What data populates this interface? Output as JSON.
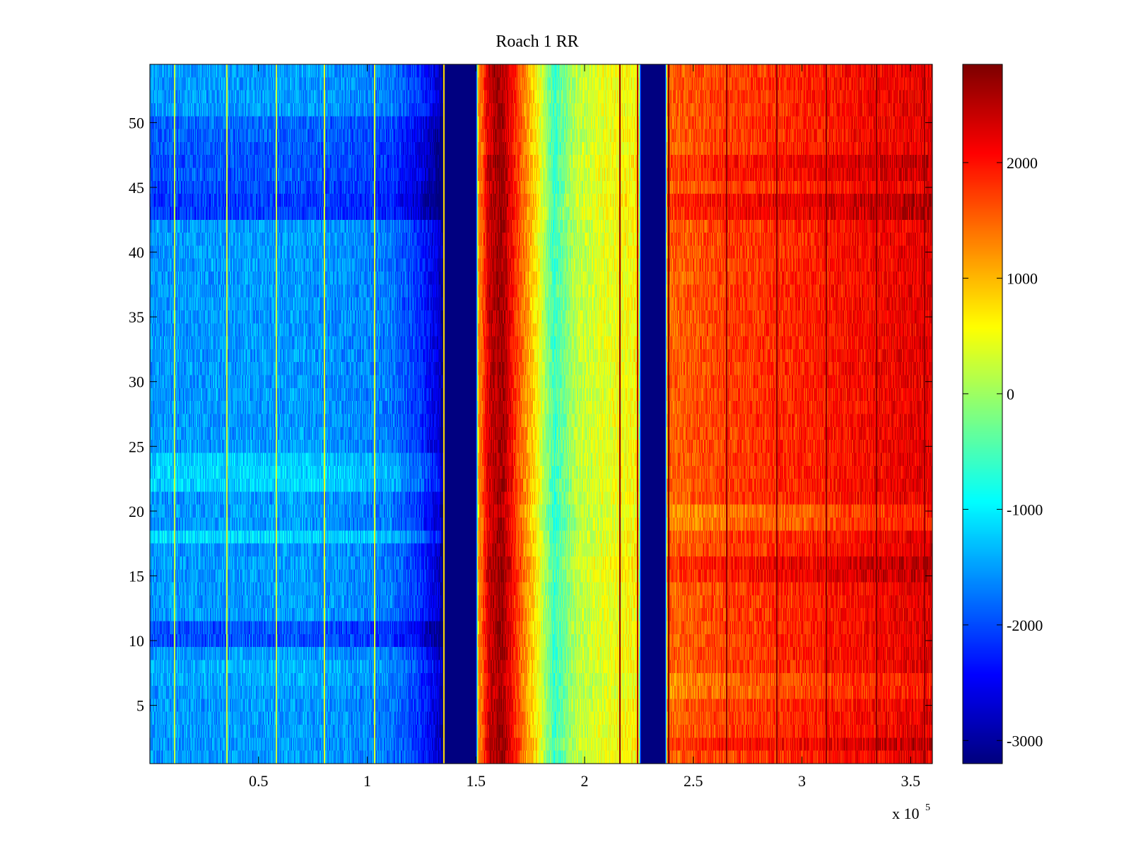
{
  "chart_data": {
    "type": "heatmap",
    "title": "Roach 1 RR",
    "xlabel": "",
    "ylabel": "",
    "x_range": [
      0,
      360000
    ],
    "y_range": [
      0.5,
      54.5
    ],
    "x_ticks": [
      50000,
      100000,
      150000,
      200000,
      250000,
      300000,
      350000
    ],
    "x_tick_labels": [
      "0.5",
      "1",
      "1.5",
      "2",
      "2.5",
      "3",
      "3.5"
    ],
    "x_multiplier_label": "x 10",
    "x_multiplier_exponent": "5",
    "y_ticks": [
      5,
      10,
      15,
      20,
      25,
      30,
      35,
      40,
      45,
      50
    ],
    "y_tick_labels": [
      "5",
      "10",
      "15",
      "20",
      "25",
      "30",
      "35",
      "40",
      "45",
      "50"
    ],
    "rows": 54,
    "colormap": "jet",
    "colorbar": {
      "range": [
        -3200,
        2850
      ],
      "ticks": [
        -3000,
        -2000,
        -1000,
        0,
        1000,
        2000
      ],
      "tick_labels": [
        "-3000",
        "-2000",
        "-1000",
        "0",
        "1000",
        "2000"
      ]
    },
    "column_profile": [
      {
        "x": 0,
        "value": -1550
      },
      {
        "x": 70000,
        "value": -1500
      },
      {
        "x": 110000,
        "value": -1700
      },
      {
        "x": 123000,
        "value": -2100
      },
      {
        "x": 133000,
        "value": -2700
      },
      {
        "x": 135000,
        "value": -3200
      },
      {
        "x": 150000,
        "value": -3200
      },
      {
        "x": 151000,
        "value": 1000
      },
      {
        "x": 156000,
        "value": 2400
      },
      {
        "x": 162000,
        "value": 2700
      },
      {
        "x": 170000,
        "value": 1600
      },
      {
        "x": 178000,
        "value": 650
      },
      {
        "x": 186000,
        "value": -600
      },
      {
        "x": 196000,
        "value": 150
      },
      {
        "x": 205000,
        "value": 350
      },
      {
        "x": 214000,
        "value": 500
      },
      {
        "x": 225000,
        "value": 600
      },
      {
        "x": 226000,
        "value": -3200
      },
      {
        "x": 237000,
        "value": -3200
      },
      {
        "x": 238000,
        "value": 1500
      },
      {
        "x": 260000,
        "value": 1700
      },
      {
        "x": 300000,
        "value": 1900
      },
      {
        "x": 330000,
        "value": 2100
      },
      {
        "x": 360000,
        "value": 2250
      }
    ],
    "row_offsets": {
      "blue_region": [
        {
          "row": 43,
          "offset": -550
        },
        {
          "row": 44,
          "offset": -600
        },
        {
          "row": 45,
          "offset": -500
        },
        {
          "row": 46,
          "offset": -400
        },
        {
          "row": 47,
          "offset": -450
        },
        {
          "row": 48,
          "offset": -400
        },
        {
          "row": 49,
          "offset": -350
        },
        {
          "row": 50,
          "offset": -300
        },
        {
          "row": 10,
          "offset": -450
        },
        {
          "row": 11,
          "offset": -450
        },
        {
          "row": 22,
          "offset": 350
        },
        {
          "row": 23,
          "offset": 350
        },
        {
          "row": 24,
          "offset": 300
        },
        {
          "row": 18,
          "offset": 400
        },
        {
          "row": 8,
          "offset": 150
        },
        {
          "row": 7,
          "offset": 100
        }
      ],
      "red_region": [
        {
          "row": 44,
          "offset": 350
        },
        {
          "row": 43,
          "offset": 300
        },
        {
          "row": 46,
          "offset": 200
        },
        {
          "row": 47,
          "offset": 250
        },
        {
          "row": 16,
          "offset": 300
        },
        {
          "row": 15,
          "offset": 250
        },
        {
          "row": 2,
          "offset": 250
        },
        {
          "row": 20,
          "offset": -350
        },
        {
          "row": 19,
          "offset": -300
        },
        {
          "row": 7,
          "offset": -250
        },
        {
          "row": 6,
          "offset": -250
        }
      ]
    },
    "vertical_lines": [
      {
        "x": 11000,
        "value": 200
      },
      {
        "x": 35000,
        "value": 300
      },
      {
        "x": 58000,
        "value": 250
      },
      {
        "x": 80000,
        "value": 400
      },
      {
        "x": 103000,
        "value": 350
      },
      {
        "x": 135000,
        "value": 800
      },
      {
        "x": 151500,
        "value": 1500
      },
      {
        "x": 216000,
        "value": 2700
      },
      {
        "x": 224000,
        "value": 2500
      },
      {
        "x": 238500,
        "value": 2800
      },
      {
        "x": 265000,
        "value": 2750
      },
      {
        "x": 288000,
        "value": 2750
      },
      {
        "x": 311000,
        "value": 2750
      },
      {
        "x": 334000,
        "value": 2750
      },
      {
        "x": 356000,
        "value": 2700
      }
    ]
  }
}
